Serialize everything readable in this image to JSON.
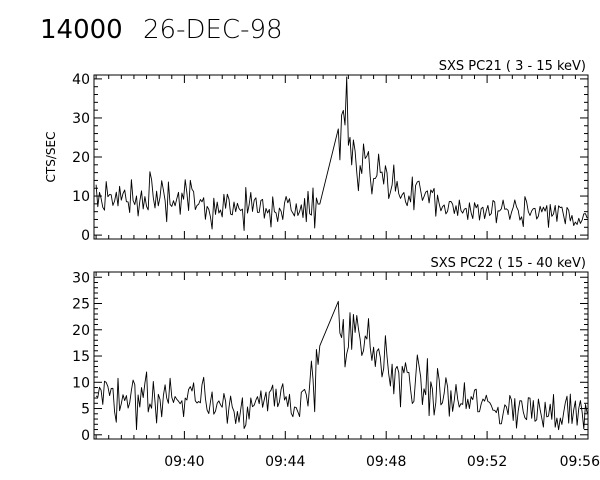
{
  "header": {
    "id": "14000",
    "date": "26-DEC-98"
  },
  "chart_data": [
    {
      "type": "line",
      "title": "SXS PC21  (  3 - 15 keV)",
      "ylabel": "CTS/SEC",
      "xlabel": "",
      "xlim": [
        "09:36:25",
        "09:56:00"
      ],
      "ylim": [
        -1,
        41
      ],
      "yticks": [
        0,
        10,
        20,
        30,
        40
      ],
      "xticks": [
        "09:40",
        "09:44",
        "09:48",
        "09:52",
        "09:56"
      ],
      "show_xtick_labels": false,
      "series": [
        {
          "points": [
            [
              "09:36:30",
              10
            ],
            [
              "09:37:00",
              9.5
            ],
            [
              "09:37:30",
              10
            ],
            [
              "09:38:00",
              9
            ],
            [
              "09:38:30",
              9
            ],
            [
              "09:39:00",
              8.5
            ],
            [
              "09:39:30",
              8.5
            ],
            [
              "09:40:00",
              8
            ],
            [
              "09:40:30",
              8
            ],
            [
              "09:41:00",
              7.5
            ],
            [
              "09:41:30",
              7.5
            ],
            [
              "09:42:00",
              7
            ],
            [
              "09:42:30",
              7
            ],
            [
              "09:43:00",
              7.5
            ],
            [
              "09:43:30",
              7
            ],
            [
              "09:44:00",
              7
            ],
            [
              "09:44:30",
              7.5
            ],
            [
              "09:44:45",
              8
            ],
            [
              "09:45:00",
              9
            ],
            [
              "09:45:15",
              10
            ],
            [
              "09:45:25",
              11
            ],
            [
              "09:46:10",
              24
            ],
            [
              "09:46:20",
              26
            ],
            [
              "09:46:40",
              22
            ],
            [
              "09:47:00",
              18
            ],
            [
              "09:47:20",
              17
            ],
            [
              "09:47:40",
              16
            ],
            [
              "09:48:00",
              15
            ],
            [
              "09:48:20",
              13
            ],
            [
              "09:48:40",
              11
            ],
            [
              "09:49:00",
              10
            ],
            [
              "09:49:30",
              9
            ],
            [
              "09:50:00",
              8
            ],
            [
              "09:50:30",
              7
            ],
            [
              "09:51:00",
              7
            ],
            [
              "09:51:30",
              6.5
            ],
            [
              "09:52:00",
              6
            ],
            [
              "09:52:30",
              6
            ],
            [
              "09:53:00",
              5.5
            ],
            [
              "09:53:30",
              5.5
            ],
            [
              "09:54:00",
              5
            ],
            [
              "09:54:30",
              5
            ],
            [
              "09:55:00",
              5
            ],
            [
              "09:55:30",
              5
            ],
            [
              "09:55:58",
              5
            ]
          ]
        }
      ]
    },
    {
      "type": "line",
      "title": "SXS PC22  ( 15 - 40 keV)",
      "ylabel": "",
      "xlabel": "",
      "xlim": [
        "09:36:25",
        "09:56:00"
      ],
      "ylim": [
        -0.8,
        31
      ],
      "yticks": [
        0,
        5,
        10,
        15,
        20,
        25,
        30
      ],
      "xticks": [
        "09:40",
        "09:44",
        "09:48",
        "09:52",
        "09:56"
      ],
      "show_xtick_labels": true,
      "series": [
        {
          "points": [
            [
              "09:36:30",
              8
            ],
            [
              "09:37:00",
              8
            ],
            [
              "09:37:30",
              7.5
            ],
            [
              "09:38:00",
              7.5
            ],
            [
              "09:38:30",
              7
            ],
            [
              "09:39:00",
              7
            ],
            [
              "09:39:30",
              7
            ],
            [
              "09:40:00",
              6.5
            ],
            [
              "09:40:30",
              6.5
            ],
            [
              "09:41:00",
              6
            ],
            [
              "09:41:30",
              6
            ],
            [
              "09:42:00",
              5.5
            ],
            [
              "09:42:30",
              5.5
            ],
            [
              "09:43:00",
              6
            ],
            [
              "09:43:30",
              6
            ],
            [
              "09:44:00",
              6
            ],
            [
              "09:44:30",
              6.5
            ],
            [
              "09:44:45",
              8
            ],
            [
              "09:45:00",
              10
            ],
            [
              "09:45:15",
              12
            ],
            [
              "09:45:25",
              10
            ],
            [
              "09:46:05",
              24
            ],
            [
              "09:46:15",
              20
            ],
            [
              "09:46:30",
              18
            ],
            [
              "09:46:50",
              17
            ],
            [
              "09:47:10",
              16
            ],
            [
              "09:47:30",
              15
            ],
            [
              "09:47:50",
              14
            ],
            [
              "09:48:10",
              12
            ],
            [
              "09:48:30",
              11
            ],
            [
              "09:49:00",
              10
            ],
            [
              "09:49:30",
              9
            ],
            [
              "09:50:00",
              8
            ],
            [
              "09:50:30",
              7
            ],
            [
              "09:51:00",
              6.5
            ],
            [
              "09:51:30",
              6
            ],
            [
              "09:52:00",
              5.5
            ],
            [
              "09:52:30",
              5
            ],
            [
              "09:53:00",
              5
            ],
            [
              "09:53:30",
              4.5
            ],
            [
              "09:54:00",
              4.5
            ],
            [
              "09:54:30",
              4.5
            ],
            [
              "09:55:00",
              4.5
            ],
            [
              "09:55:30",
              4.5
            ],
            [
              "09:55:58",
              4.5
            ]
          ]
        }
      ]
    }
  ]
}
